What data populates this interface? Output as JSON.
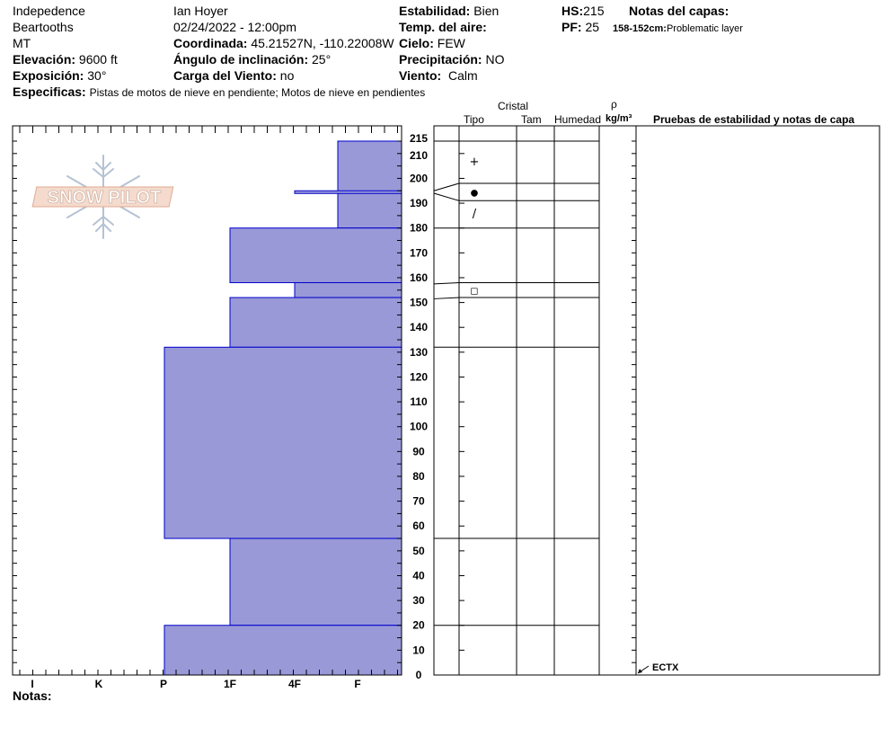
{
  "header": {
    "location": "Indepedence",
    "range": "Beartooths",
    "state": "MT",
    "elevation_label": "Elevación:",
    "elevation_value": "9600 ft",
    "aspect_label": "Exposición:",
    "aspect_value": "30°",
    "specifics_label": "Especificas:",
    "specifics_value": "Pistas de motos de nieve en pendiente; Motos de nieve en pendientes",
    "observer": "Ian Hoyer",
    "datetime": "02/24/2022 - 12:00pm",
    "coord_label": "Coordinada:",
    "coord_value": "45.21527N, -110.22008W",
    "angle_label": "Ángulo de inclinación:",
    "angle_value": "25°",
    "wind_load_label": "Carga del Viento:",
    "wind_load_value": "no",
    "stability_label": "Estabilidad:",
    "stability_value": "Bien",
    "air_temp_label": "Temp. del aire:",
    "sky_label": "Cielo:",
    "sky_value": "FEW",
    "precip_label": "Precipitación:",
    "precip_value": "NO",
    "wind_label": "Viento:",
    "wind_value": "Calm",
    "hs_label": "HS:",
    "hs_value": "215",
    "pf_label": "PF:",
    "pf_value": "25",
    "layer_notes_label": "Notas del capas:",
    "layer_note_depth": "158-152cm:",
    "layer_note_text": "Problematic layer"
  },
  "logo": {
    "text": "SNOW PILOT"
  },
  "columns": {
    "crystal": "Cristal",
    "type": "Tipo",
    "size": "Tam",
    "moisture": "Humedad",
    "rho": "ρ",
    "density_unit": "kg/m³",
    "tests": "Pruebas de estabilidad y notas de capa"
  },
  "notes_label": "Notas:",
  "chart_data": {
    "type": "bar",
    "ylim": [
      0,
      215
    ],
    "y_ticks": [
      0,
      10,
      20,
      30,
      40,
      50,
      60,
      70,
      80,
      90,
      100,
      110,
      120,
      130,
      140,
      150,
      160,
      170,
      180,
      190,
      200,
      210,
      215
    ],
    "hardness_scale": [
      "I",
      "K",
      "P",
      "1F",
      "4F",
      "F"
    ],
    "hardness_values": {
      "F": 1,
      "4F": 2,
      "1F": 3,
      "P": 4,
      "K": 5,
      "I": 6
    },
    "layers": [
      {
        "top": 215,
        "bottom": 180,
        "hardness": "F"
      },
      {
        "top": 180,
        "bottom": 158,
        "hardness": "1F"
      },
      {
        "top": 158,
        "bottom": 152,
        "hardness": "4F"
      },
      {
        "top": 152,
        "bottom": 132,
        "hardness": "1F"
      },
      {
        "top": 132,
        "bottom": 55,
        "hardness": "P"
      },
      {
        "top": 55,
        "bottom": 20,
        "hardness": "1F"
      },
      {
        "top": 20,
        "bottom": 0,
        "hardness": "P"
      }
    ],
    "thin_layer": {
      "top": 195,
      "bottom": 194,
      "hardness": "4F"
    },
    "layer_boundaries": [
      215,
      198,
      191,
      180,
      158,
      152,
      132,
      55,
      20,
      0
    ],
    "grain_symbols": [
      {
        "depth": 207,
        "symbol": "+"
      },
      {
        "depth": 194.5,
        "symbol": "●"
      },
      {
        "depth": 186,
        "symbol": "/"
      },
      {
        "depth": 155,
        "symbol": "◻"
      }
    ],
    "stability_tests": [
      {
        "depth": 0,
        "label": "ECTX"
      }
    ],
    "colors": {
      "fill": "#9999d8",
      "stroke": "#0000cc"
    }
  }
}
